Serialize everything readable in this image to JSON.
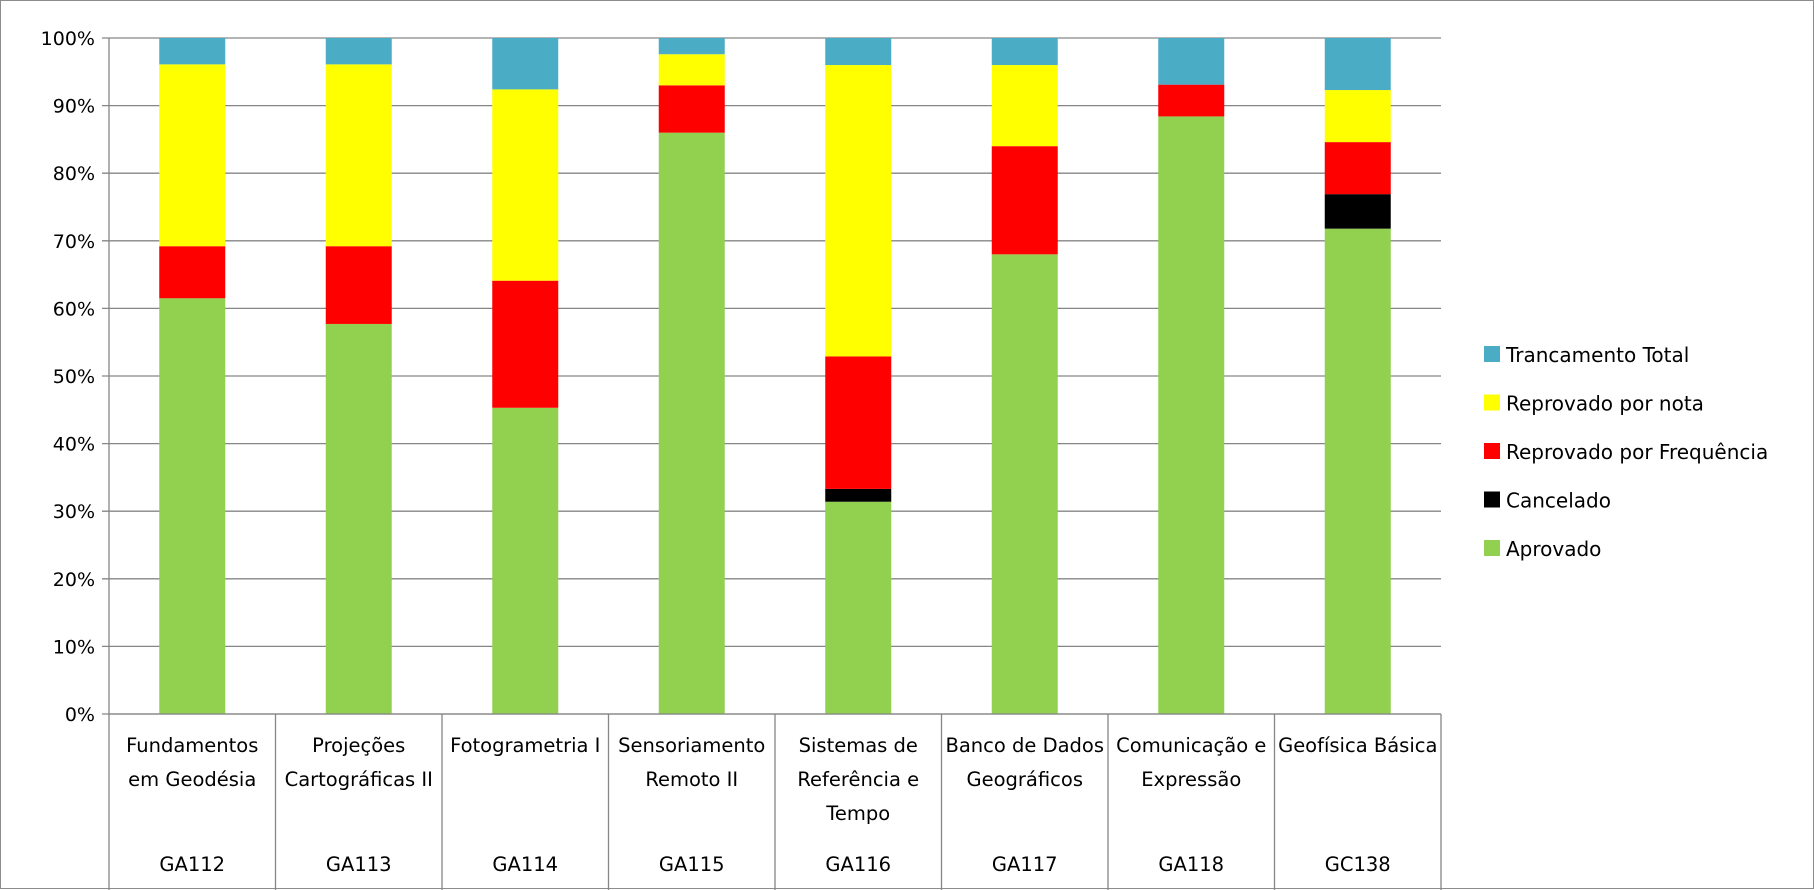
{
  "chart_data": {
    "type": "bar",
    "stacked": true,
    "normalized": true,
    "title": "",
    "xlabel": "",
    "ylabel": "",
    "ylim": [
      0,
      100
    ],
    "yticks": [
      "0%",
      "10%",
      "20%",
      "30%",
      "40%",
      "50%",
      "60%",
      "70%",
      "80%",
      "90%",
      "100%"
    ],
    "grid": true,
    "legend_position": "right",
    "categories": [
      {
        "name": "Fundamentos em Geodésia",
        "code": "GA112"
      },
      {
        "name": "Projeções Cartográficas II",
        "code": "GA113"
      },
      {
        "name": "Fotogrametria I",
        "code": "GA114"
      },
      {
        "name": "Sensoriamento Remoto II",
        "code": "GA115"
      },
      {
        "name": "Sistemas de Referência e Tempo",
        "code": "GA116"
      },
      {
        "name": "Banco de Dados Geográficos",
        "code": "GA117"
      },
      {
        "name": "Comunicação e Expressão",
        "code": "GA118"
      },
      {
        "name": "Geofísica Básica",
        "code": "GC138"
      }
    ],
    "series": [
      {
        "name": "Aprovado",
        "color": "#92d050",
        "values": [
          61.5,
          57.7,
          45.3,
          86.0,
          31.4,
          68.0,
          88.4,
          71.8
        ]
      },
      {
        "name": "Cancelado",
        "color": "#000000",
        "values": [
          0,
          0,
          0,
          0,
          1.9,
          0,
          0,
          5.1
        ]
      },
      {
        "name": "Reprovado por Frequência",
        "color": "#ff0000",
        "values": [
          7.7,
          11.5,
          18.8,
          7.0,
          19.6,
          16.0,
          4.7,
          7.7
        ]
      },
      {
        "name": "Reprovado por nota",
        "color": "#ffff00",
        "values": [
          26.9,
          26.9,
          28.3,
          4.6,
          43.1,
          12.0,
          0,
          7.7
        ]
      },
      {
        "name": "Trancamento Total",
        "color": "#4bacc6",
        "values": [
          3.9,
          3.9,
          7.6,
          2.4,
          4.0,
          4.0,
          6.9,
          7.7
        ]
      }
    ],
    "legend": [
      "Trancamento Total",
      "Reprovado por nota",
      "Reprovado por Frequência",
      "Cancelado",
      "Aprovado"
    ]
  }
}
